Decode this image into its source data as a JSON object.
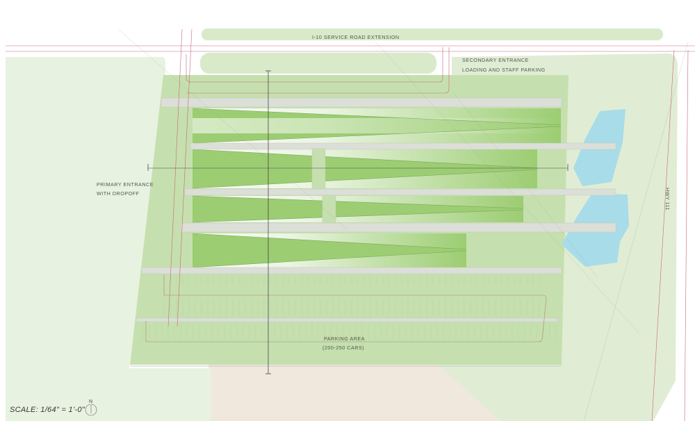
{
  "labels": {
    "service_road": "I-10 SERVICE ROAD EXTENSION",
    "secondary_entrance_line1": "SECONDARY ENTRANCE",
    "secondary_entrance_line2": "LOADING AND STAFF PARKING",
    "primary_entrance_line1": "PRIMARY ENTRANCE",
    "primary_entrance_line2": "WITH DROPOFF",
    "highway": "HWY 111",
    "parking_line1": "PARKING AREA",
    "parking_line2": "(200-250 CARS)"
  },
  "scale": {
    "text": "SCALE: 1/64\" = 1'-0\""
  },
  "north_arrow": {
    "letter": "N",
    "icon": "north-arrow-icon"
  },
  "colors": {
    "light_green": "#dcebd2",
    "site_green": "#c5e0ae",
    "building_green": "#9ccd72",
    "walkway": "#dcdfd7",
    "pond": "#a8dce8",
    "sand": "#f1e8dd",
    "property_line": "#c8657d"
  }
}
